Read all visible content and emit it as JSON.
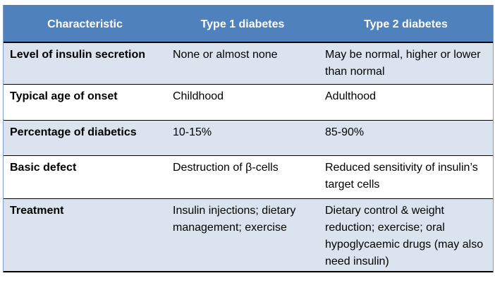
{
  "table": {
    "headers": [
      "Characteristic",
      "Type 1 diabetes",
      "Type 2 diabetes"
    ],
    "rows": [
      {
        "characteristic": "Level of insulin secretion",
        "type1": "None or almost none",
        "type2": "May be normal, higher or lower than normal"
      },
      {
        "characteristic": "Typical age of onset",
        "type1": "Childhood",
        "type2": "Adulthood"
      },
      {
        "characteristic": "Percentage of diabetics",
        "type1": "10-15%",
        "type2": "85-90%"
      },
      {
        "characteristic": "Basic defect",
        "type1": "Destruction of β-cells",
        "type2": "Reduced sensitivity of insulin’s target cells"
      },
      {
        "characteristic": "Treatment",
        "type1": "Insulin injections; dietary management; exercise",
        "type2": "Dietary control & weight reduction; exercise;  oral hypoglycaemic drugs (may also need insulin)"
      }
    ]
  }
}
